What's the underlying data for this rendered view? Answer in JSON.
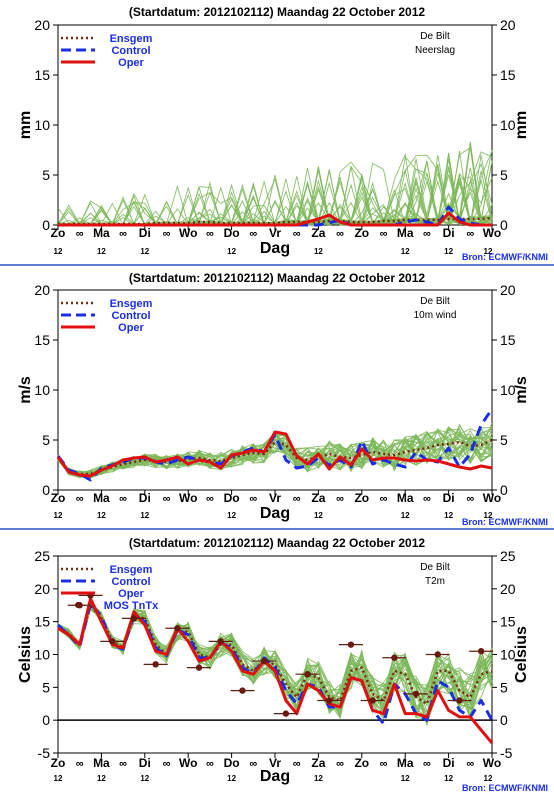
{
  "source_label": "Bron: ECMWF/KNMI",
  "legend_labels": {
    "ensgem": "Ensgem",
    "control": "Control",
    "oper": "Oper",
    "mos": "MOS TnTx"
  },
  "colors": {
    "ensemble": "#7db85a",
    "ensgem": "#7a2a10",
    "control": "#1a2ee6",
    "oper": "#e01010",
    "mos": "#6b1a10",
    "frame": "#000000",
    "divider": "#3050c8",
    "label_blue": "#1a2ee6"
  },
  "x_axis": {
    "label": "Dag",
    "days": [
      "Zo",
      "Ma",
      "Di",
      "Wo",
      "Do",
      "Vr",
      "Za",
      "Zo",
      "Ma",
      "Di",
      "Wo"
    ],
    "noon_label": "12",
    "between_marker": "∞"
  },
  "chart_data": [
    {
      "type": "line",
      "title": "(Startdatum: 2012102112)   Maandag   22 October   2012",
      "location": "De Bilt",
      "variable": "Neerslag",
      "ylabel": "mm",
      "ylim": [
        0,
        20
      ],
      "yticks": [
        0,
        5,
        10,
        15,
        20
      ],
      "x_unit": "days since start (Zo 22 Oct 2012 12UTC)",
      "series": [
        {
          "name": "Ensgem",
          "style": "dotted",
          "x": [
            0,
            0.25,
            0.5,
            0.75,
            1,
            1.25,
            1.5,
            1.75,
            2,
            2.25,
            2.5,
            2.75,
            3,
            3.25,
            3.5,
            3.75,
            4,
            4.25,
            4.5,
            4.75,
            5,
            5.25,
            5.5,
            5.75,
            6,
            6.25,
            6.5,
            6.75,
            7,
            7.25,
            7.5,
            7.75,
            8,
            8.25,
            8.5,
            8.75,
            9,
            9.25,
            9.5,
            9.75,
            10
          ],
          "values": [
            0.1,
            0.1,
            0.1,
            0.1,
            0.1,
            0.1,
            0.1,
            0.1,
            0.1,
            0.2,
            0.2,
            0.2,
            0.2,
            0.3,
            0.3,
            0.2,
            0.2,
            0.2,
            0.2,
            0.2,
            0.2,
            0.3,
            0.3,
            0.3,
            0.3,
            0.4,
            0.4,
            0.3,
            0.3,
            0.3,
            0.4,
            0.4,
            0.5,
            0.5,
            0.5,
            0.5,
            0.6,
            0.6,
            0.6,
            0.6,
            0.7
          ]
        },
        {
          "name": "Control",
          "style": "dashed",
          "x": [
            0,
            0.25,
            0.5,
            0.75,
            1,
            1.25,
            1.5,
            1.75,
            2,
            2.25,
            2.5,
            2.75,
            3,
            3.25,
            3.5,
            3.75,
            4,
            4.25,
            4.5,
            4.75,
            5,
            5.25,
            5.5,
            5.75,
            6,
            6.25,
            6.5,
            6.75,
            7,
            7.25,
            7.5,
            7.75,
            8,
            8.25,
            8.5,
            8.75,
            9,
            9.25,
            9.5,
            9.75,
            10
          ],
          "values": [
            0,
            0,
            0,
            0,
            0,
            0,
            0,
            0,
            0,
            0,
            0,
            0,
            0,
            0,
            0,
            0,
            0,
            0,
            0,
            0,
            0,
            0,
            0,
            0,
            0,
            0.2,
            0.5,
            0,
            0,
            0,
            0,
            0,
            0.3,
            0.5,
            0.3,
            0,
            1.8,
            0.6,
            0.2,
            0,
            0
          ]
        },
        {
          "name": "Oper",
          "style": "solid",
          "x": [
            0,
            0.25,
            0.5,
            0.75,
            1,
            1.25,
            1.5,
            1.75,
            2,
            2.25,
            2.5,
            2.75,
            3,
            3.25,
            3.5,
            3.75,
            4,
            4.25,
            4.5,
            4.75,
            5,
            5.25,
            5.5,
            5.75,
            6,
            6.25,
            6.5,
            6.75,
            7,
            7.25,
            7.5,
            7.75,
            8,
            8.25,
            8.5,
            8.75,
            9,
            9.25,
            9.5,
            9.75,
            10
          ],
          "values": [
            0,
            0,
            0,
            0,
            0,
            0,
            0,
            0,
            0,
            0,
            0,
            0,
            0,
            0,
            0,
            0,
            0,
            0,
            0,
            0,
            0,
            0,
            0,
            0.3,
            0.6,
            1.0,
            0.3,
            0,
            0,
            0,
            0,
            0,
            0,
            0,
            0,
            0,
            1.2,
            0.3,
            0,
            0,
            0
          ]
        }
      ]
    },
    {
      "type": "line",
      "title": "(Startdatum: 2012102112)   Maandag   22 October   2012",
      "location": "De Bilt",
      "variable": "10m wind",
      "ylabel": "m/s",
      "ylim": [
        0,
        20
      ],
      "yticks": [
        0,
        5,
        10,
        15,
        20
      ],
      "x_unit": "days since start (Zo 22 Oct 2012 12UTC)",
      "series": [
        {
          "name": "Ensgem",
          "style": "dotted",
          "x": [
            0,
            0.25,
            0.5,
            0.75,
            1,
            1.25,
            1.5,
            1.75,
            2,
            2.25,
            2.5,
            2.75,
            3,
            3.25,
            3.5,
            3.75,
            4,
            4.25,
            4.5,
            4.75,
            5,
            5.25,
            5.5,
            5.75,
            6,
            6.25,
            6.5,
            6.75,
            7,
            7.25,
            7.5,
            7.75,
            8,
            8.25,
            8.5,
            8.75,
            9,
            9.25,
            9.5,
            9.75,
            10
          ],
          "values": [
            3.2,
            1.8,
            1.6,
            1.6,
            2.0,
            2.3,
            2.6,
            2.8,
            3.0,
            2.9,
            2.8,
            2.9,
            3.1,
            3.2,
            3.0,
            2.9,
            3.2,
            3.5,
            3.7,
            3.6,
            4.8,
            4.5,
            3.2,
            3.0,
            3.3,
            3.6,
            3.3,
            3.2,
            3.5,
            3.8,
            3.6,
            3.5,
            3.8,
            4.0,
            4.2,
            4.5,
            4.6,
            4.8,
            4.4,
            4.5,
            5.0
          ]
        },
        {
          "name": "Control",
          "style": "dashed",
          "x": [
            0,
            0.25,
            0.5,
            0.75,
            1,
            1.25,
            1.5,
            1.75,
            2,
            2.25,
            2.5,
            2.75,
            3,
            3.25,
            3.5,
            3.75,
            4,
            4.25,
            4.5,
            4.75,
            5,
            5.25,
            5.5,
            5.75,
            6,
            6.25,
            6.5,
            6.75,
            7,
            7.25,
            7.5,
            7.75,
            8,
            8.25,
            8.5,
            8.75,
            9,
            9.25,
            9.5,
            9.75,
            10
          ],
          "values": [
            3.4,
            2.0,
            1.6,
            1.0,
            2.2,
            2.5,
            2.8,
            3.2,
            3.2,
            2.8,
            2.6,
            3.0,
            3.3,
            3.0,
            2.8,
            2.6,
            3.4,
            3.8,
            4.2,
            3.8,
            5.5,
            3.0,
            2.2,
            2.4,
            3.2,
            2.5,
            3.0,
            2.3,
            4.9,
            2.6,
            3.0,
            2.6,
            2.3,
            3.8,
            3.0,
            2.8,
            4.2,
            2.3,
            3.6,
            6.5,
            8.1
          ]
        },
        {
          "name": "Oper",
          "style": "solid",
          "x": [
            0,
            0.25,
            0.5,
            0.75,
            1,
            1.25,
            1.5,
            1.75,
            2,
            2.25,
            2.5,
            2.75,
            3,
            3.25,
            3.5,
            3.75,
            4,
            4.25,
            4.5,
            4.75,
            5,
            5.25,
            5.5,
            5.75,
            6,
            6.25,
            6.5,
            6.75,
            7,
            7.25,
            7.5,
            7.75,
            8,
            8.25,
            8.5,
            8.75,
            9,
            9.25,
            9.5,
            9.75,
            10
          ],
          "values": [
            3.3,
            1.8,
            1.5,
            1.4,
            2.0,
            2.4,
            3.0,
            3.2,
            3.3,
            2.8,
            3.0,
            3.3,
            2.6,
            3.0,
            2.8,
            2.2,
            3.5,
            3.7,
            4.0,
            3.8,
            5.8,
            5.6,
            3.4,
            2.6,
            3.6,
            2.1,
            3.3,
            2.5,
            4.1,
            3.0,
            3.2,
            3.2,
            3.0,
            2.9,
            3.0,
            2.9,
            2.6,
            2.3,
            2.1,
            2.4,
            2.2
          ]
        }
      ]
    },
    {
      "type": "line",
      "title": "(Startdatum: 2012102112)   Maandag   22 October   2012",
      "location": "De Bilt",
      "variable": "T2m",
      "ylabel": "Celsius",
      "ylim": [
        -5,
        25
      ],
      "yticks": [
        -5,
        0,
        5,
        10,
        15,
        20,
        25
      ],
      "x_unit": "days since start (Zo 22 Oct 2012 12UTC)",
      "series": [
        {
          "name": "Ensgem",
          "style": "dotted",
          "x": [
            0,
            0.25,
            0.5,
            0.75,
            1,
            1.25,
            1.5,
            1.75,
            2,
            2.25,
            2.5,
            2.75,
            3,
            3.25,
            3.5,
            3.75,
            4,
            4.25,
            4.5,
            4.75,
            5,
            5.25,
            5.5,
            5.75,
            6,
            6.25,
            6.5,
            6.75,
            7,
            7.25,
            7.5,
            7.75,
            8,
            8.25,
            8.5,
            8.75,
            9,
            9.25,
            9.5,
            9.75,
            10
          ],
          "values": [
            14.2,
            13.2,
            11.5,
            17.5,
            15.5,
            12.0,
            11.0,
            15.8,
            15.5,
            11.5,
            10.0,
            13.5,
            13.5,
            10.0,
            9.5,
            11.5,
            11.5,
            8.5,
            7.5,
            9.0,
            8.5,
            5.5,
            3.5,
            7.0,
            6.5,
            3.5,
            3.0,
            7.5,
            8.0,
            4.0,
            3.0,
            7.5,
            7.0,
            3.5,
            2.5,
            7.5,
            7.5,
            4.5,
            3.5,
            7.0,
            7.5
          ]
        },
        {
          "name": "Control",
          "style": "dashed",
          "x": [
            0,
            0.25,
            0.5,
            0.75,
            1,
            1.25,
            1.5,
            1.75,
            2,
            2.25,
            2.5,
            2.75,
            3,
            3.25,
            3.5,
            3.75,
            4,
            4.25,
            4.5,
            4.75,
            5,
            5.25,
            5.5,
            5.75,
            6,
            6.25,
            6.5,
            6.75,
            7,
            7.25,
            7.5,
            7.75,
            8,
            8.25,
            8.5,
            8.75,
            9,
            9.25,
            9.5,
            9.75,
            10
          ],
          "values": [
            14.5,
            13.0,
            11.2,
            17.8,
            15.8,
            11.5,
            10.8,
            16.0,
            15.0,
            11.0,
            9.8,
            13.8,
            13.0,
            9.5,
            9.5,
            11.8,
            11.0,
            8.0,
            7.0,
            9.5,
            8.0,
            4.5,
            2.5,
            5.5,
            5.0,
            2.0,
            2.0,
            6.5,
            6.0,
            1.5,
            -0.5,
            5.5,
            4.0,
            1.0,
            0.0,
            6.0,
            5.0,
            1.5,
            0.5,
            3.0,
            0.0
          ]
        },
        {
          "name": "Oper",
          "style": "solid",
          "x": [
            0,
            0.25,
            0.5,
            0.75,
            1,
            1.25,
            1.5,
            1.75,
            2,
            2.25,
            2.5,
            2.75,
            3,
            3.25,
            3.5,
            3.75,
            4,
            4.25,
            4.5,
            4.75,
            5,
            5.25,
            5.5,
            5.75,
            6,
            6.25,
            6.5,
            6.75,
            7,
            7.25,
            7.5,
            7.75,
            8,
            8.25,
            8.5,
            8.75,
            9,
            9.25,
            9.5,
            9.75,
            10
          ],
          "values": [
            14.0,
            13.0,
            11.5,
            18.5,
            15.0,
            11.5,
            11.0,
            16.5,
            14.5,
            10.5,
            10.0,
            14.0,
            12.0,
            9.0,
            9.5,
            12.0,
            10.5,
            7.5,
            7.0,
            9.0,
            7.5,
            3.0,
            1.0,
            5.5,
            4.5,
            2.5,
            2.0,
            6.5,
            6.0,
            1.5,
            1.0,
            5.5,
            1.0,
            1.0,
            0.5,
            4.5,
            1.5,
            0.5,
            0.5,
            -1.5,
            -3.5
          ]
        },
        {
          "name": "MOS TnTx",
          "style": "markers",
          "x": [
            0.5,
            0.75,
            1.25,
            1.75,
            2.25,
            2.75,
            3.25,
            3.75,
            4.25,
            4.75,
            5.25,
            5.75,
            6.25,
            6.75,
            7.25,
            7.75,
            8.25,
            8.75,
            9.25,
            9.75
          ],
          "values": [
            17.5,
            19.0,
            12.0,
            15.5,
            8.5,
            14.0,
            8.0,
            12.0,
            4.5,
            9.0,
            1.0,
            7.0,
            3.0,
            11.5,
            3.0,
            9.5,
            4.0,
            10.0,
            3.0,
            10.5
          ]
        }
      ]
    }
  ]
}
